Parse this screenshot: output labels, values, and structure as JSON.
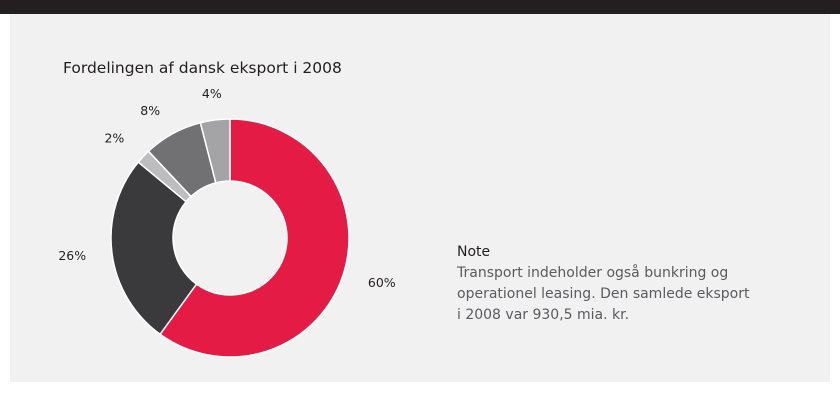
{
  "chart_data": {
    "type": "pie",
    "style": "donut",
    "title": "Fordelingen af dansk eksport i 2008",
    "slices": [
      {
        "value": 60,
        "label": "60%",
        "color": "#e31b45"
      },
      {
        "value": 26,
        "label": "26%",
        "color": "#3a393b"
      },
      {
        "value": 2,
        "label": "2%",
        "color": "#bdbdc0"
      },
      {
        "value": 8,
        "label": "8%",
        "color": "#717073"
      },
      {
        "value": 4,
        "label": "4%",
        "color": "#a4a3a6"
      }
    ],
    "start": "12 o'clock",
    "direction": "clockwise"
  },
  "note": {
    "heading": "Note",
    "lines": [
      "Transport indeholder også bunkring og",
      "operationel leasing. Den samlede eksport",
      "i 2008 var 930,5 mia. kr."
    ]
  },
  "colors": {
    "top_bar": "#231f20",
    "panel_background": "#f1f1f2",
    "accent": "#e31b45"
  }
}
